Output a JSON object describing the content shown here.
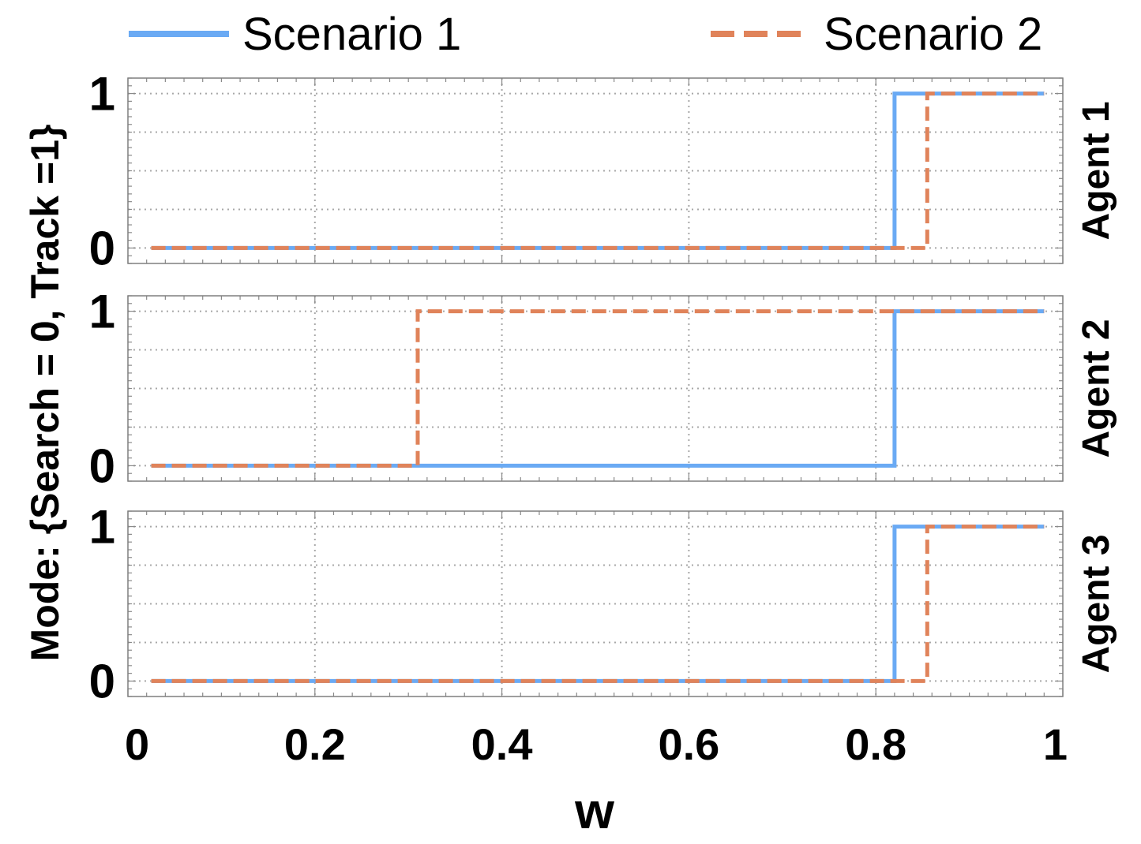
{
  "chart_data": {
    "type": "line",
    "step": true,
    "xlabel": "w",
    "ylabel": "Mode: {Search = 0, Track =1}",
    "xlim": [
      0,
      1
    ],
    "ylim": [
      -0.1,
      1.1
    ],
    "x_ticks": [
      "0",
      "0.2",
      "0.4",
      "0.6",
      "0.8",
      "1"
    ],
    "y_ticks": [
      "0",
      "1"
    ],
    "grid": true,
    "legend_position": "top",
    "legend": [
      {
        "name": "Scenario 1",
        "style": "solid",
        "color": "#6aaaf4"
      },
      {
        "name": "Scenario 2",
        "style": "dashed",
        "color": "#e0835a"
      }
    ],
    "panels": [
      {
        "label": "Agent 1",
        "series": [
          {
            "name": "Scenario 1",
            "x": [
              0.025,
              0.82,
              0.82,
              0.98
            ],
            "y": [
              0,
              0,
              1,
              1
            ]
          },
          {
            "name": "Scenario 2",
            "x": [
              0.025,
              0.855,
              0.855,
              0.98
            ],
            "y": [
              0,
              0,
              1,
              1
            ]
          }
        ]
      },
      {
        "label": "Agent 2",
        "series": [
          {
            "name": "Scenario 1",
            "x": [
              0.025,
              0.82,
              0.82,
              0.98
            ],
            "y": [
              0,
              0,
              1,
              1
            ]
          },
          {
            "name": "Scenario 2",
            "x": [
              0.025,
              0.31,
              0.31,
              0.98
            ],
            "y": [
              0,
              0,
              1,
              1
            ]
          }
        ]
      },
      {
        "label": "Agent 3",
        "series": [
          {
            "name": "Scenario 1",
            "x": [
              0.025,
              0.82,
              0.82,
              0.98
            ],
            "y": [
              0,
              0,
              1,
              1
            ]
          },
          {
            "name": "Scenario 2",
            "x": [
              0.025,
              0.855,
              0.855,
              0.98
            ],
            "y": [
              0,
              0,
              1,
              1
            ]
          }
        ]
      }
    ]
  }
}
